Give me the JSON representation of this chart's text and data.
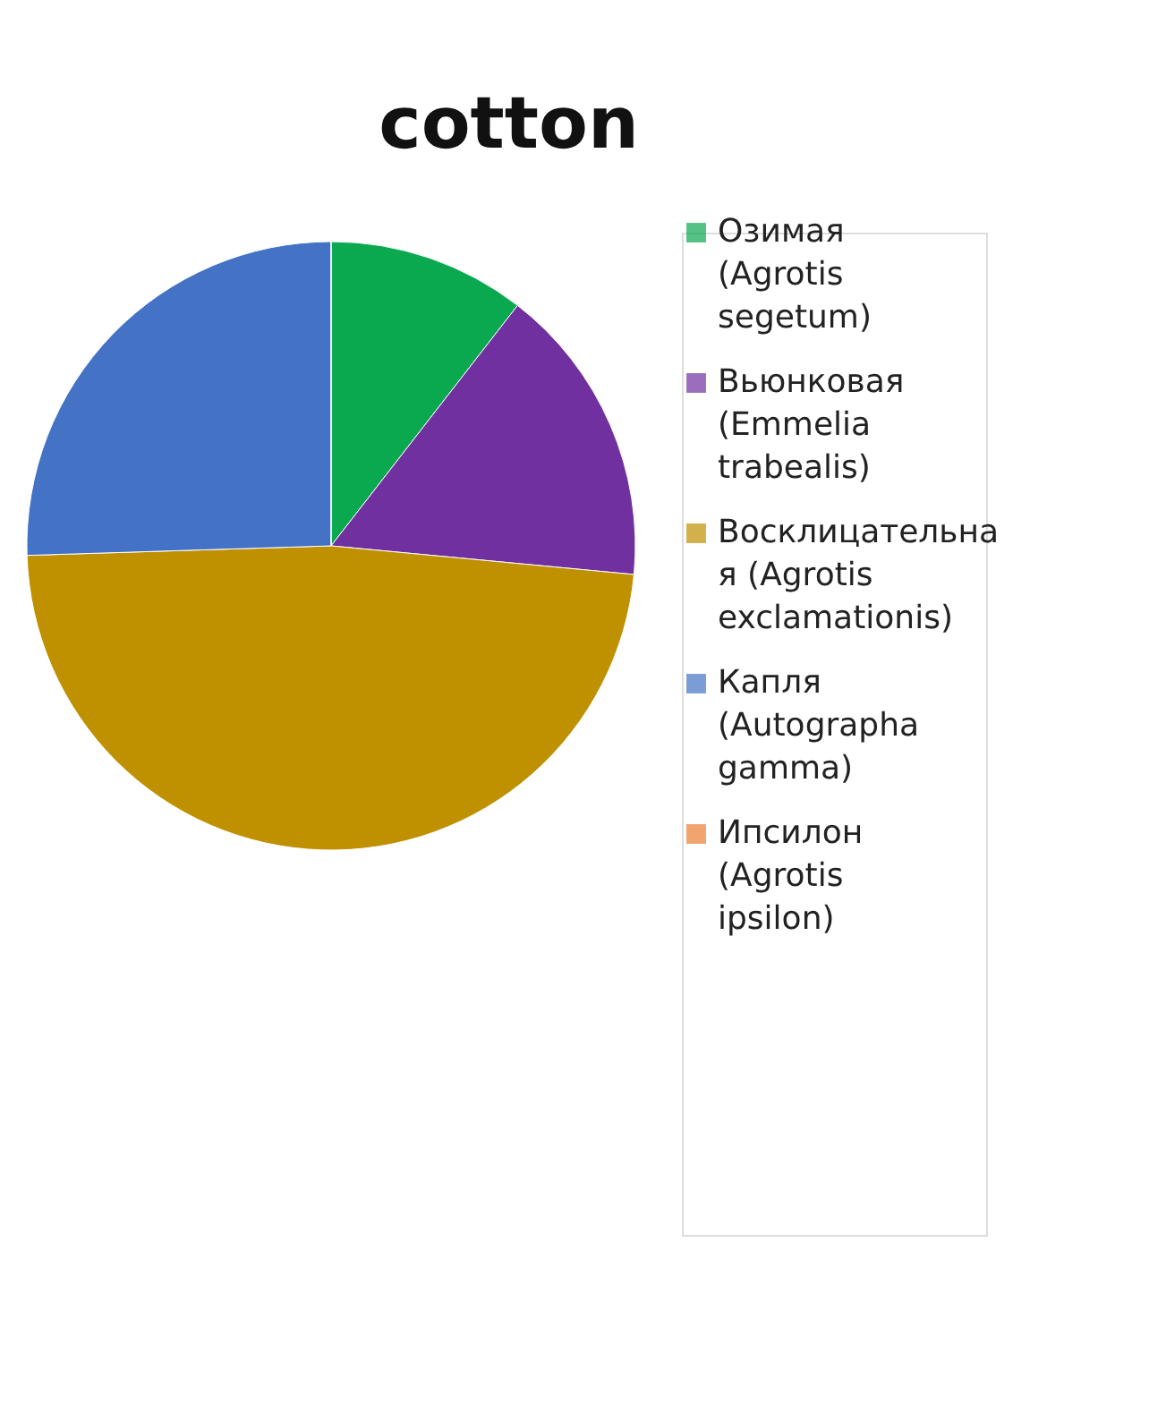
{
  "chart_data": {
    "type": "pie",
    "title": "cotton",
    "categories": [
      "Озимая (Agrotis segetum)",
      "Вьюнковая (Emmelia trabealis)",
      "Восклицательная (Agrotis exclamationis)",
      "Капля (Autographa gamma)",
      "Ипсилон (Agrotis ipsilon)"
    ],
    "values": [
      10.5,
      16,
      48,
      25.5,
      0
    ],
    "colors": [
      "#0aa84f",
      "#7030a0",
      "#bf9000",
      "#4472c4",
      "#ed7d31"
    ],
    "legend": "right"
  }
}
